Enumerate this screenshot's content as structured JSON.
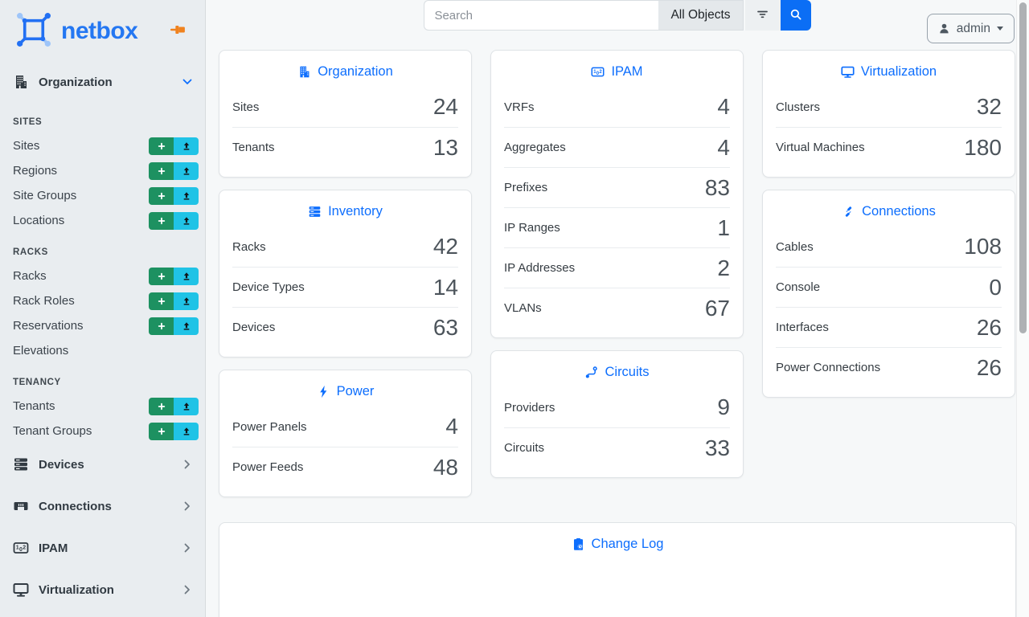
{
  "brand": {
    "name": "netbox"
  },
  "colors": {
    "accent": "#0d6efd",
    "add_button": "#1d9161",
    "import_button": "#20c3e6",
    "pin": "#f0821e",
    "logo_blue": "#2477f2"
  },
  "topbar": {
    "search_placeholder": "Search",
    "scope_label": "All Objects",
    "user": "admin"
  },
  "sidebar": {
    "groups": [
      {
        "label": "Organization",
        "icon": "building-icon",
        "state": "expanded",
        "sections": [
          {
            "heading": "SITES",
            "items": [
              {
                "label": "Sites",
                "actions": [
                  "add",
                  "import"
                ]
              },
              {
                "label": "Regions",
                "actions": [
                  "add",
                  "import"
                ]
              },
              {
                "label": "Site Groups",
                "actions": [
                  "add",
                  "import"
                ]
              },
              {
                "label": "Locations",
                "actions": [
                  "add",
                  "import"
                ]
              }
            ]
          },
          {
            "heading": "RACKS",
            "items": [
              {
                "label": "Racks",
                "actions": [
                  "add",
                  "import"
                ]
              },
              {
                "label": "Rack Roles",
                "actions": [
                  "add",
                  "import"
                ]
              },
              {
                "label": "Reservations",
                "actions": [
                  "add",
                  "import"
                ]
              },
              {
                "label": "Elevations",
                "actions": []
              }
            ]
          },
          {
            "heading": "TENANCY",
            "items": [
              {
                "label": "Tenants",
                "actions": [
                  "add",
                  "import"
                ]
              },
              {
                "label": "Tenant Groups",
                "actions": [
                  "add",
                  "import"
                ]
              }
            ]
          }
        ]
      },
      {
        "label": "Devices",
        "icon": "server-stack-icon",
        "state": "collapsed",
        "sections": []
      },
      {
        "label": "Connections",
        "icon": "ethernet-icon",
        "state": "collapsed",
        "sections": []
      },
      {
        "label": "IPAM",
        "icon": "ipam-icon",
        "state": "collapsed",
        "sections": []
      },
      {
        "label": "Virtualization",
        "icon": "monitor-icon",
        "state": "collapsed",
        "sections": []
      }
    ]
  },
  "cards": [
    {
      "title": "Organization",
      "icon": "building-icon",
      "column": 1,
      "stats": [
        {
          "label": "Sites",
          "value": 24
        },
        {
          "label": "Tenants",
          "value": 13
        }
      ]
    },
    {
      "title": "Inventory",
      "icon": "server-stack-icon",
      "column": 1,
      "stats": [
        {
          "label": "Racks",
          "value": 42
        },
        {
          "label": "Device Types",
          "value": 14
        },
        {
          "label": "Devices",
          "value": 63
        }
      ]
    },
    {
      "title": "Power",
      "icon": "lightning-icon",
      "column": 1,
      "stats": [
        {
          "label": "Power Panels",
          "value": 4
        },
        {
          "label": "Power Feeds",
          "value": 48
        }
      ]
    },
    {
      "title": "IPAM",
      "icon": "ipam-icon",
      "column": 2,
      "stats": [
        {
          "label": "VRFs",
          "value": 4
        },
        {
          "label": "Aggregates",
          "value": 4
        },
        {
          "label": "Prefixes",
          "value": 83
        },
        {
          "label": "IP Ranges",
          "value": 1
        },
        {
          "label": "IP Addresses",
          "value": 2
        },
        {
          "label": "VLANs",
          "value": 67
        }
      ]
    },
    {
      "title": "Circuits",
      "icon": "circuits-icon",
      "column": 2,
      "stats": [
        {
          "label": "Providers",
          "value": 9
        },
        {
          "label": "Circuits",
          "value": 33
        }
      ]
    },
    {
      "title": "Virtualization",
      "icon": "monitor-icon",
      "column": 3,
      "stats": [
        {
          "label": "Clusters",
          "value": 32
        },
        {
          "label": "Virtual Machines",
          "value": 180
        }
      ]
    },
    {
      "title": "Connections",
      "icon": "cable-icon",
      "column": 3,
      "stats": [
        {
          "label": "Cables",
          "value": 108
        },
        {
          "label": "Console",
          "value": 0
        },
        {
          "label": "Interfaces",
          "value": 26
        },
        {
          "label": "Power Connections",
          "value": 26
        }
      ]
    }
  ],
  "changelog": {
    "title": "Change Log"
  }
}
